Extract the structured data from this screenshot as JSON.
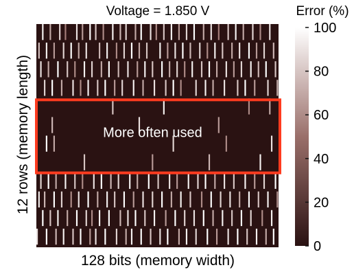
{
  "chart_data": {
    "type": "heatmap",
    "title": "Voltage = 1.850 V",
    "xlabel": "128 bits (memory width)",
    "ylabel": "12 rows (memory length)",
    "n_cols": 128,
    "n_rows": 12,
    "colorbar": {
      "title": "Error (%)",
      "range": [
        0,
        100
      ],
      "ticks": [
        0,
        20,
        40,
        60,
        80,
        100
      ]
    },
    "annotation": {
      "text": "More often used",
      "rows": [
        4,
        7
      ],
      "color": "#ff3b1f"
    },
    "colors": {
      "low": "#2a1212",
      "mid": "#9a6f6a",
      "high": "#ffffff",
      "highlight": "#ff3b1f"
    },
    "row_error_density": [
      0.3,
      0.28,
      0.3,
      0.26,
      0.05,
      0.03,
      0.04,
      0.02,
      0.26,
      0.28,
      0.3,
      0.28
    ],
    "cells": [
      [
        0,
        3,
        95
      ],
      [
        0,
        7,
        70
      ],
      [
        0,
        12,
        85
      ],
      [
        0,
        15,
        55
      ],
      [
        0,
        21,
        90
      ],
      [
        0,
        24,
        65
      ],
      [
        0,
        28,
        100
      ],
      [
        0,
        31,
        80
      ],
      [
        0,
        35,
        60
      ],
      [
        0,
        40,
        95
      ],
      [
        0,
        44,
        75
      ],
      [
        0,
        47,
        85
      ],
      [
        0,
        52,
        70
      ],
      [
        0,
        55,
        100
      ],
      [
        0,
        60,
        90
      ],
      [
        0,
        63,
        60
      ],
      [
        0,
        67,
        80
      ],
      [
        0,
        71,
        95
      ],
      [
        0,
        75,
        65
      ],
      [
        0,
        79,
        85
      ],
      [
        0,
        83,
        100
      ],
      [
        0,
        88,
        70
      ],
      [
        0,
        92,
        90
      ],
      [
        0,
        96,
        55
      ],
      [
        0,
        101,
        80
      ],
      [
        0,
        105,
        95
      ],
      [
        0,
        109,
        70
      ],
      [
        0,
        114,
        85
      ],
      [
        0,
        118,
        60
      ],
      [
        0,
        123,
        90
      ],
      [
        1,
        1,
        80
      ],
      [
        1,
        5,
        95
      ],
      [
        1,
        9,
        65
      ],
      [
        1,
        14,
        85
      ],
      [
        1,
        18,
        100
      ],
      [
        1,
        22,
        70
      ],
      [
        1,
        26,
        90
      ],
      [
        1,
        33,
        75
      ],
      [
        1,
        37,
        95
      ],
      [
        1,
        42,
        60
      ],
      [
        1,
        46,
        85
      ],
      [
        1,
        50,
        100
      ],
      [
        1,
        54,
        70
      ],
      [
        1,
        58,
        80
      ],
      [
        1,
        65,
        95
      ],
      [
        1,
        69,
        65
      ],
      [
        1,
        73,
        90
      ],
      [
        1,
        77,
        100
      ],
      [
        1,
        81,
        75
      ],
      [
        1,
        86,
        85
      ],
      [
        1,
        90,
        60
      ],
      [
        1,
        94,
        95
      ],
      [
        1,
        98,
        80
      ],
      [
        1,
        103,
        70
      ],
      [
        1,
        107,
        90
      ],
      [
        1,
        112,
        100
      ],
      [
        1,
        116,
        65
      ],
      [
        1,
        120,
        85
      ],
      [
        1,
        125,
        75
      ],
      [
        2,
        2,
        90
      ],
      [
        2,
        6,
        70
      ],
      [
        2,
        11,
        100
      ],
      [
        2,
        16,
        80
      ],
      [
        2,
        20,
        60
      ],
      [
        2,
        25,
        95
      ],
      [
        2,
        29,
        85
      ],
      [
        2,
        34,
        70
      ],
      [
        2,
        38,
        100
      ],
      [
        2,
        43,
        75
      ],
      [
        2,
        48,
        90
      ],
      [
        2,
        53,
        65
      ],
      [
        2,
        57,
        95
      ],
      [
        2,
        61,
        80
      ],
      [
        2,
        66,
        100
      ],
      [
        2,
        70,
        70
      ],
      [
        2,
        74,
        85
      ],
      [
        2,
        78,
        60
      ],
      [
        2,
        82,
        95
      ],
      [
        2,
        87,
        80
      ],
      [
        2,
        91,
        100
      ],
      [
        2,
        95,
        70
      ],
      [
        2,
        100,
        90
      ],
      [
        2,
        104,
        65
      ],
      [
        2,
        108,
        85
      ],
      [
        2,
        113,
        95
      ],
      [
        2,
        117,
        75
      ],
      [
        2,
        121,
        100
      ],
      [
        2,
        126,
        80
      ],
      [
        3,
        4,
        85
      ],
      [
        3,
        8,
        100
      ],
      [
        3,
        13,
        70
      ],
      [
        3,
        19,
        90
      ],
      [
        3,
        23,
        60
      ],
      [
        3,
        27,
        95
      ],
      [
        3,
        32,
        80
      ],
      [
        3,
        36,
        100
      ],
      [
        3,
        41,
        65
      ],
      [
        3,
        45,
        85
      ],
      [
        3,
        51,
        95
      ],
      [
        3,
        56,
        70
      ],
      [
        3,
        62,
        90
      ],
      [
        3,
        68,
        80
      ],
      [
        3,
        72,
        100
      ],
      [
        3,
        76,
        60
      ],
      [
        3,
        84,
        85
      ],
      [
        3,
        89,
        95
      ],
      [
        3,
        93,
        70
      ],
      [
        3,
        99,
        90
      ],
      [
        3,
        106,
        80
      ],
      [
        3,
        110,
        100
      ],
      [
        3,
        115,
        65
      ],
      [
        3,
        122,
        85
      ],
      [
        3,
        127,
        75
      ],
      [
        4,
        40,
        80
      ],
      [
        4,
        67,
        95
      ],
      [
        4,
        112,
        60
      ],
      [
        4,
        123,
        70
      ],
      [
        5,
        8,
        75
      ],
      [
        5,
        54,
        90
      ],
      [
        5,
        96,
        65
      ],
      [
        6,
        5,
        100
      ],
      [
        6,
        9,
        70
      ],
      [
        6,
        72,
        85
      ],
      [
        6,
        100,
        60
      ],
      [
        6,
        124,
        90
      ],
      [
        7,
        25,
        80
      ],
      [
        7,
        61,
        65
      ],
      [
        7,
        91,
        75
      ],
      [
        7,
        118,
        95
      ],
      [
        8,
        2,
        85
      ],
      [
        8,
        6,
        100
      ],
      [
        8,
        10,
        70
      ],
      [
        8,
        15,
        95
      ],
      [
        8,
        20,
        80
      ],
      [
        8,
        24,
        60
      ],
      [
        8,
        30,
        90
      ],
      [
        8,
        34,
        100
      ],
      [
        8,
        39,
        75
      ],
      [
        8,
        43,
        85
      ],
      [
        8,
        49,
        95
      ],
      [
        8,
        53,
        70
      ],
      [
        8,
        59,
        100
      ],
      [
        8,
        64,
        80
      ],
      [
        8,
        70,
        90
      ],
      [
        8,
        74,
        65
      ],
      [
        8,
        80,
        95
      ],
      [
        8,
        85,
        85
      ],
      [
        8,
        89,
        100
      ],
      [
        8,
        94,
        70
      ],
      [
        8,
        99,
        90
      ],
      [
        8,
        104,
        80
      ],
      [
        8,
        110,
        95
      ],
      [
        8,
        115,
        65
      ],
      [
        8,
        120,
        85
      ],
      [
        8,
        126,
        100
      ],
      [
        9,
        1,
        95
      ],
      [
        9,
        4,
        75
      ],
      [
        9,
        9,
        100
      ],
      [
        9,
        13,
        85
      ],
      [
        9,
        18,
        60
      ],
      [
        9,
        22,
        90
      ],
      [
        9,
        27,
        100
      ],
      [
        9,
        32,
        70
      ],
      [
        9,
        37,
        95
      ],
      [
        9,
        41,
        80
      ],
      [
        9,
        46,
        100
      ],
      [
        9,
        51,
        65
      ],
      [
        9,
        56,
        90
      ],
      [
        9,
        61,
        85
      ],
      [
        9,
        66,
        100
      ],
      [
        9,
        71,
        70
      ],
      [
        9,
        76,
        95
      ],
      [
        9,
        81,
        80
      ],
      [
        9,
        87,
        60
      ],
      [
        9,
        92,
        100
      ],
      [
        9,
        97,
        85
      ],
      [
        9,
        102,
        90
      ],
      [
        9,
        107,
        70
      ],
      [
        9,
        112,
        100
      ],
      [
        9,
        117,
        80
      ],
      [
        9,
        122,
        95
      ],
      [
        9,
        127,
        65
      ],
      [
        10,
        3,
        100
      ],
      [
        10,
        7,
        80
      ],
      [
        10,
        11,
        95
      ],
      [
        10,
        16,
        70
      ],
      [
        10,
        21,
        100
      ],
      [
        10,
        26,
        85
      ],
      [
        10,
        29,
        60
      ],
      [
        10,
        33,
        95
      ],
      [
        10,
        38,
        100
      ],
      [
        10,
        44,
        75
      ],
      [
        10,
        48,
        90
      ],
      [
        10,
        52,
        100
      ],
      [
        10,
        57,
        80
      ],
      [
        10,
        62,
        95
      ],
      [
        10,
        68,
        65
      ],
      [
        10,
        73,
        100
      ],
      [
        10,
        78,
        85
      ],
      [
        10,
        83,
        90
      ],
      [
        10,
        88,
        100
      ],
      [
        10,
        93,
        70
      ],
      [
        10,
        98,
        95
      ],
      [
        10,
        103,
        80
      ],
      [
        10,
        108,
        100
      ],
      [
        10,
        113,
        85
      ],
      [
        10,
        119,
        60
      ],
      [
        10,
        124,
        95
      ],
      [
        11,
        0,
        90
      ],
      [
        11,
        5,
        100
      ],
      [
        11,
        10,
        75
      ],
      [
        11,
        14,
        95
      ],
      [
        11,
        19,
        80
      ],
      [
        11,
        23,
        100
      ],
      [
        11,
        28,
        65
      ],
      [
        11,
        31,
        90
      ],
      [
        11,
        36,
        100
      ],
      [
        11,
        42,
        85
      ],
      [
        11,
        47,
        70
      ],
      [
        11,
        50,
        95
      ],
      [
        11,
        55,
        100
      ],
      [
        11,
        60,
        80
      ],
      [
        11,
        65,
        90
      ],
      [
        11,
        69,
        100
      ],
      [
        11,
        75,
        70
      ],
      [
        11,
        79,
        95
      ],
      [
        11,
        84,
        85
      ],
      [
        11,
        90,
        100
      ],
      [
        11,
        95,
        65
      ],
      [
        11,
        101,
        90
      ],
      [
        11,
        106,
        100
      ],
      [
        11,
        111,
        80
      ],
      [
        11,
        116,
        95
      ],
      [
        11,
        121,
        70
      ],
      [
        11,
        125,
        100
      ]
    ]
  }
}
